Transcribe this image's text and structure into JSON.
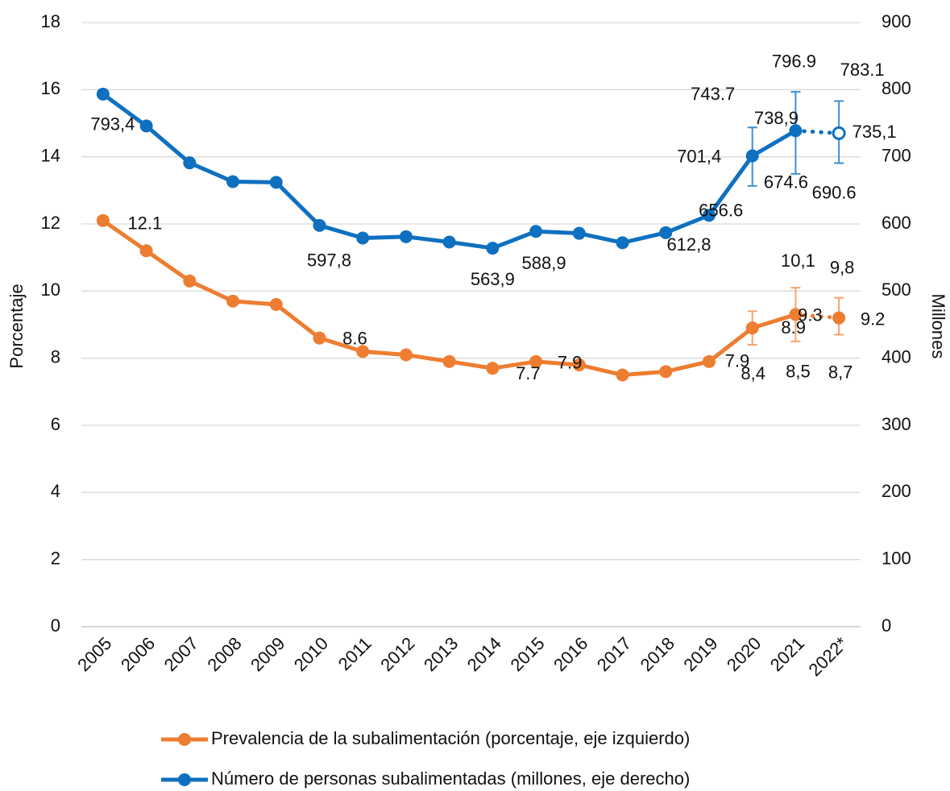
{
  "chart_data": {
    "type": "line",
    "categories": [
      "2005",
      "2006",
      "2007",
      "2008",
      "2009",
      "2010",
      "2011",
      "2012",
      "2013",
      "2014",
      "2015",
      "2016",
      "2017",
      "2018",
      "2019",
      "2020",
      "2021",
      "2022*"
    ],
    "ylabel": "Porcentaje",
    "y2label": "Millones",
    "ylim": [
      0,
      18
    ],
    "yticks": [
      0,
      2,
      4,
      6,
      8,
      10,
      12,
      14,
      16,
      18
    ],
    "y2lim": [
      0,
      900
    ],
    "y2ticks": [
      0,
      100,
      200,
      300,
      400,
      500,
      600,
      700,
      800,
      900
    ],
    "grid": true,
    "legend": "bottom",
    "series": [
      {
        "name": "Prevalencia de la subalimentación (porcentaje, eje izquierdo)",
        "color": "#ED7D31",
        "axis": "y",
        "dotted_from": 16,
        "open_last": false,
        "values": [
          12.1,
          11.2,
          10.3,
          9.7,
          9.6,
          8.6,
          8.2,
          8.1,
          7.9,
          7.7,
          7.9,
          7.8,
          7.5,
          7.6,
          7.9,
          8.9,
          9.3,
          9.2
        ],
        "value_labels": [
          "12.1",
          null,
          null,
          null,
          null,
          "8.6",
          null,
          null,
          null,
          "7.7",
          "7.9",
          null,
          null,
          null,
          "7.9",
          "8.9",
          "9.3",
          "9.2"
        ],
        "lower": [
          null,
          null,
          null,
          null,
          null,
          null,
          null,
          null,
          null,
          null,
          null,
          null,
          null,
          null,
          null,
          8.4,
          8.5,
          8.7
        ],
        "lower_labels": [
          null,
          null,
          null,
          null,
          null,
          null,
          null,
          null,
          null,
          null,
          null,
          null,
          null,
          null,
          null,
          "8,4",
          "8,5",
          "8,7"
        ],
        "upper": [
          null,
          null,
          null,
          null,
          null,
          null,
          null,
          null,
          null,
          null,
          null,
          null,
          null,
          null,
          null,
          9.4,
          10.1,
          9.8
        ],
        "upper_labels": [
          null,
          null,
          null,
          null,
          null,
          null,
          null,
          null,
          null,
          null,
          null,
          null,
          null,
          null,
          null,
          null,
          "10,1",
          "9,8"
        ]
      },
      {
        "name": "Número de personas subalimentadas (millones, eje derecho)",
        "color": "#0F70C0",
        "axis": "y2",
        "dotted_from": 16,
        "open_last": true,
        "values": [
          793.4,
          746,
          691,
          663,
          662,
          597.8,
          579,
          581,
          573,
          563.9,
          588.9,
          586,
          572,
          587,
          612.8,
          701.4,
          738.9,
          735.1
        ],
        "value_labels": [
          "793,4",
          null,
          null,
          null,
          null,
          "597,8",
          null,
          null,
          null,
          "563,9",
          "588,9",
          null,
          null,
          null,
          "612,8",
          "701,4",
          "738,9",
          "735,1"
        ],
        "lower": [
          null,
          null,
          null,
          null,
          null,
          null,
          null,
          null,
          null,
          null,
          null,
          null,
          null,
          null,
          null,
          656.6,
          674.6,
          690.6
        ],
        "lower_labels": [
          null,
          null,
          null,
          null,
          null,
          null,
          null,
          null,
          null,
          null,
          null,
          null,
          null,
          null,
          null,
          "656.6",
          "674.6",
          "690.6"
        ],
        "upper": [
          null,
          null,
          null,
          null,
          null,
          null,
          null,
          null,
          null,
          null,
          null,
          null,
          null,
          null,
          null,
          743.7,
          796.9,
          783.1
        ],
        "upper_labels": [
          null,
          null,
          null,
          null,
          null,
          null,
          null,
          null,
          null,
          null,
          null,
          null,
          null,
          null,
          null,
          "743.7",
          "796.9",
          "783.1"
        ]
      }
    ]
  }
}
